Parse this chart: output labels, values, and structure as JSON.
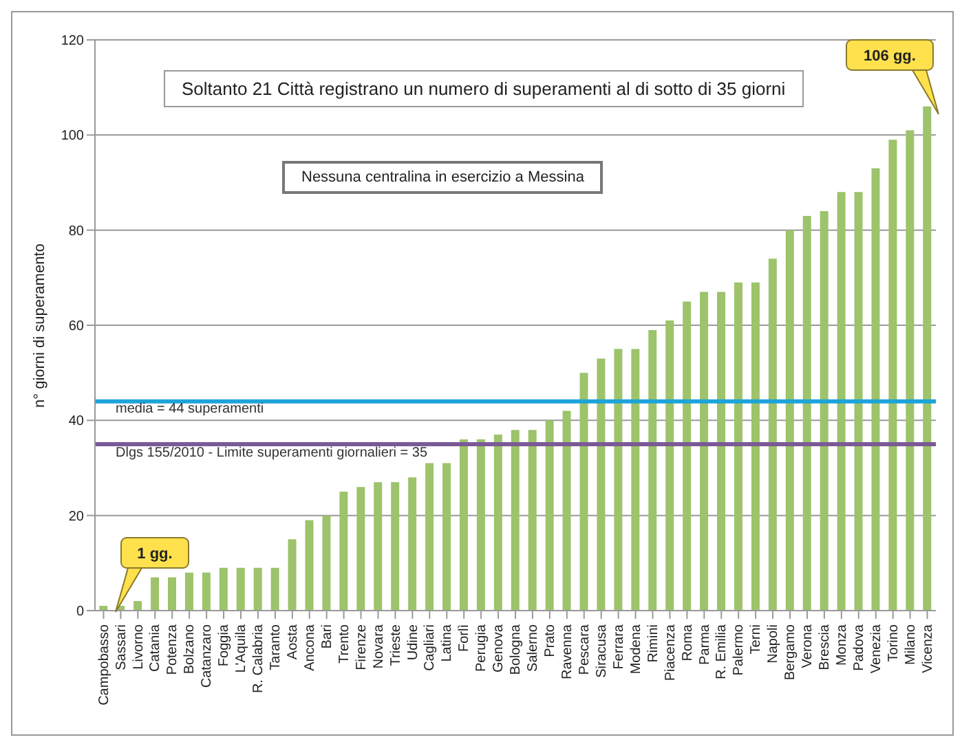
{
  "chart_data": {
    "type": "bar",
    "ylabel": "n° giorni di superamento",
    "categories": [
      "Campobasso",
      "Sassari",
      "Livorno",
      "Catania",
      "Potenza",
      "Bolzano",
      "Catanzaro",
      "Foggia",
      "L'Aquila",
      "R. Calabria",
      "Taranto",
      "Aosta",
      "Ancona",
      "Bari",
      "Trento",
      "Firenze",
      "Novara",
      "Trieste",
      "Udine",
      "Cagliari",
      "Latina",
      "Forlì",
      "Perugia",
      "Genova",
      "Bologna",
      "Salerno",
      "Prato",
      "Ravenna",
      "Pescara",
      "Siracusa",
      "Ferrara",
      "Modena",
      "Rimini",
      "Piacenza",
      "Roma",
      "Parma",
      "R. Emilia",
      "Palermo",
      "Terni",
      "Napoli",
      "Bergamo",
      "Verona",
      "Brescia",
      "Monza",
      "Padova",
      "Venezia",
      "Torino",
      "Milano",
      "Vicenza"
    ],
    "values": [
      1,
      1,
      2,
      7,
      7,
      8,
      8,
      9,
      9,
      9,
      9,
      15,
      19,
      20,
      25,
      26,
      27,
      27,
      28,
      31,
      31,
      36,
      36,
      37,
      38,
      38,
      40,
      42,
      50,
      53,
      55,
      55,
      59,
      61,
      65,
      67,
      67,
      69,
      69,
      74,
      80,
      83,
      84,
      88,
      88,
      93,
      99,
      101,
      106
    ],
    "color": "#9dc36b",
    "ylim": [
      0,
      120
    ],
    "yticks": [
      0,
      20,
      40,
      60,
      80,
      100,
      120
    ],
    "grid": "y",
    "ref_lines": [
      {
        "axis": "y",
        "value": 44,
        "label": "media = 44 superamenti",
        "color": "#1ea3d9"
      },
      {
        "axis": "y",
        "value": 35,
        "label": "Dlgs 155/2010  - Limite superamenti giornalieri = 35",
        "color": "#7a5a96"
      }
    ],
    "annotations": [
      "Soltanto 21 Città registrano un numero di superamenti al di sotto di 35 giorni",
      "Nessuna centralina in esercizio a Messina",
      "1 gg.",
      "106 gg."
    ]
  }
}
